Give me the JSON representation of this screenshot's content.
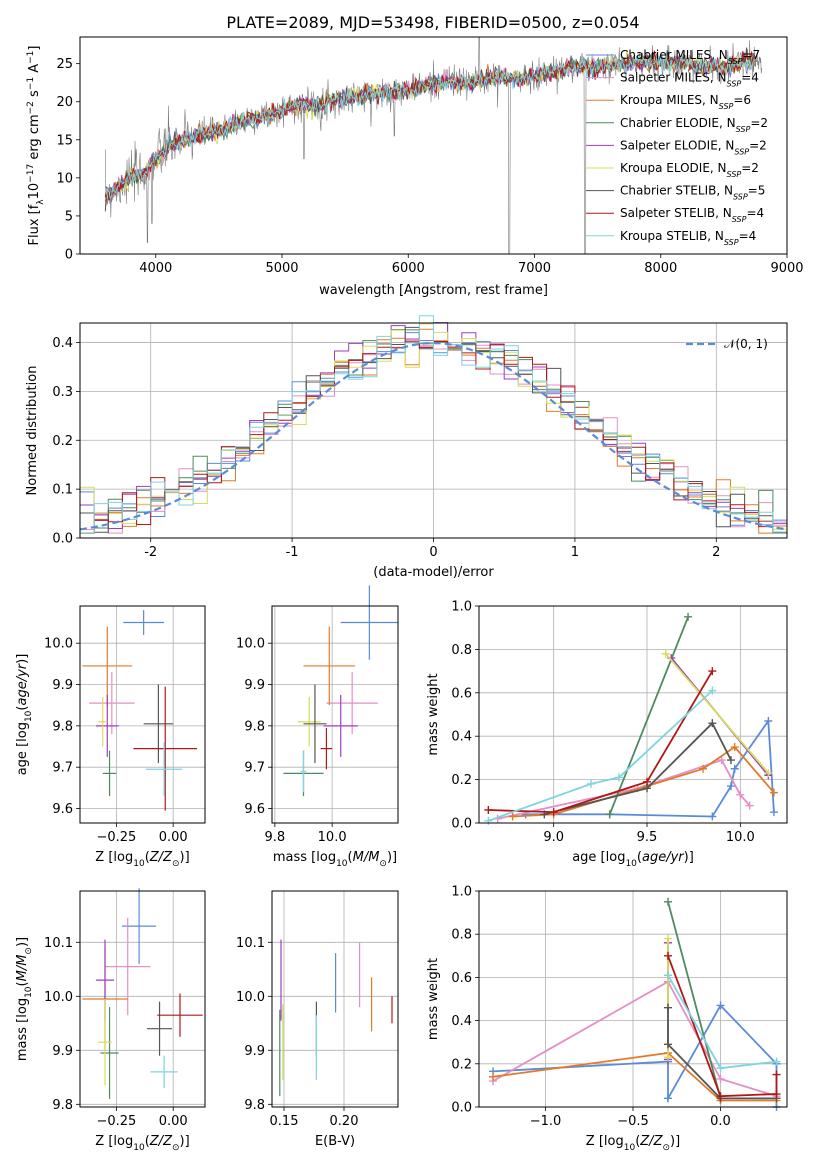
{
  "figure_title": "PLATE=2089, MJD=53498, FIBERID=0500, z=0.054",
  "series_styles": [
    {
      "name": "Chabrier MILES",
      "color": "#5b8bd8"
    },
    {
      "name": "Salpeter MILES",
      "color": "#e48fc5"
    },
    {
      "name": "Kroupa MILES",
      "color": "#e07b2a"
    },
    {
      "name": "Chabrier ELODIE",
      "color": "#4f8a5f"
    },
    {
      "name": "Salpeter ELODIE",
      "color": "#9b3fbf"
    },
    {
      "name": "Kroupa ELODIE",
      "color": "#d8dd5a"
    },
    {
      "name": "Chabrier STELIB",
      "color": "#555555"
    },
    {
      "name": "Salpeter STELIB",
      "color": "#b01818"
    },
    {
      "name": "Kroupa STELIB",
      "color": "#7ed4df"
    }
  ],
  "chart_data": [
    {
      "id": "spectrum",
      "type": "line",
      "xlabel": "wavelength [Angstrom, rest frame]",
      "ylabel": "Flux [f_λ10^-17 erg cm^-2 s^-1 A^-1]",
      "xlim": [
        3400,
        9000
      ],
      "ylim": [
        0,
        28.5
      ],
      "xticks": [
        4000,
        5000,
        6000,
        7000,
        8000,
        9000
      ],
      "yticks": [
        0,
        5,
        10,
        15,
        20,
        25
      ],
      "grid": false,
      "legend_position": "right",
      "legend": [
        {
          "label": "Chabrier MILES, N",
          "sub": "SSP",
          "suffix": "=7",
          "color": "#5b8bd8"
        },
        {
          "label": "Salpeter MILES, N",
          "sub": "SSP",
          "suffix": "=4",
          "color": "#e48fc5"
        },
        {
          "label": "Kroupa MILES, N",
          "sub": "SSP",
          "suffix": "=6",
          "color": "#e07b2a"
        },
        {
          "label": "Chabrier ELODIE, N",
          "sub": "SSP",
          "suffix": "=2",
          "color": "#4f8a5f"
        },
        {
          "label": "Salpeter ELODIE, N",
          "sub": "SSP",
          "suffix": "=2",
          "color": "#9b3fbf"
        },
        {
          "label": "Kroupa ELODIE, N",
          "sub": "SSP",
          "suffix": "=2",
          "color": "#d8dd5a"
        },
        {
          "label": "Chabrier STELIB, N",
          "sub": "SSP",
          "suffix": "=5",
          "color": "#555555"
        },
        {
          "label": "Salpeter STELIB, N",
          "sub": "SSP",
          "suffix": "=4",
          "color": "#b01818"
        },
        {
          "label": "Kroupa STELIB, N",
          "sub": "SSP",
          "suffix": "=4",
          "color": "#7ed4df"
        }
      ],
      "continuum": {
        "x": [
          3600,
          3700,
          3800,
          3900,
          4000,
          4100,
          4300,
          4500,
          4700,
          4900,
          5100,
          5300,
          5500,
          5700,
          5900,
          6100,
          6300,
          6500,
          6700,
          6900,
          7100,
          7300,
          7500,
          7700,
          7900,
          8100,
          8300,
          8500,
          8700
        ],
        "y": [
          7.5,
          8.8,
          10.0,
          10.5,
          12.5,
          14.2,
          15.5,
          16.2,
          17.6,
          18.3,
          19.5,
          19.6,
          20.5,
          21.0,
          21.3,
          21.9,
          22.7,
          22.5,
          23.3,
          23.0,
          23.8,
          24.6,
          24.5,
          25.0,
          25.3,
          25.1,
          24.8,
          24.5,
          25.5
        ]
      },
      "features": [
        {
          "x": 3934,
          "y": 1.5
        },
        {
          "x": 3970,
          "y": 4.0
        },
        {
          "x": 5175,
          "y": 12.5
        },
        {
          "x": 5890,
          "y": 15.5
        },
        {
          "x": 6563,
          "y": 28.5
        },
        {
          "x": 6800,
          "y": 0
        },
        {
          "x": 7400,
          "y": 0
        }
      ]
    },
    {
      "id": "residuals",
      "type": "histogram",
      "xlabel": "(data-model)/error",
      "ylabel": "Normed distribution",
      "xlim": [
        -2.5,
        2.5
      ],
      "ylim": [
        0,
        0.44
      ],
      "xticks": [
        -2,
        -1,
        0,
        1,
        2
      ],
      "yticks": [
        0.0,
        0.1,
        0.2,
        0.3,
        0.4
      ],
      "grid": true,
      "legend": [
        {
          "label": "𝒩(0, 1)",
          "color": "#5b8bd8",
          "dashed": true
        }
      ],
      "legend_position": "top-right",
      "bin_width": 0.1,
      "reference_curve": "gaussian N(0,1)"
    },
    {
      "id": "age_vs_Z",
      "type": "scatter",
      "xlabel": "Z [log10(Z/Z⊙)]",
      "ylabel": "age [log10(age/yr)]",
      "xlim": [
        -0.41,
        0.14
      ],
      "ylim": [
        9.565,
        10.09
      ],
      "xticks": [
        -0.25,
        0.0
      ],
      "xtick_labels": [
        "−0.25",
        "0.00"
      ],
      "yticks": [
        9.6,
        9.7,
        9.8,
        9.9,
        10.0
      ],
      "grid": true,
      "points": [
        {
          "series": "Chabrier MILES",
          "x": -0.13,
          "y": 10.05,
          "xerr": 0.09,
          "yerr": 0.03
        },
        {
          "series": "Salpeter MILES",
          "x": -0.27,
          "y": 9.855,
          "xerr": 0.1,
          "yerr": 0.075
        },
        {
          "series": "Kroupa MILES",
          "x": -0.29,
          "y": 9.945,
          "xerr": 0.11,
          "yerr": 0.095
        },
        {
          "series": "Chabrier ELODIE",
          "x": -0.28,
          "y": 9.685,
          "xerr": 0.03,
          "yerr": 0.055
        },
        {
          "series": "Salpeter ELODIE",
          "x": -0.29,
          "y": 9.8,
          "xerr": 0.05,
          "yerr": 0.075
        },
        {
          "series": "Kroupa ELODIE",
          "x": -0.31,
          "y": 9.81,
          "xerr": 0.02,
          "yerr": 0.06
        },
        {
          "series": "Chabrier STELIB",
          "x": -0.065,
          "y": 9.805,
          "xerr": 0.065,
          "yerr": 0.095
        },
        {
          "series": "Salpeter STELIB",
          "x": -0.035,
          "y": 9.745,
          "xerr": 0.14,
          "yerr": 0.15
        },
        {
          "series": "Kroupa STELIB",
          "x": -0.04,
          "y": 9.695,
          "xerr": 0.08,
          "yerr": 0.065
        }
      ]
    },
    {
      "id": "age_vs_mass",
      "type": "scatter",
      "xlabel": "mass [log10(M/M⊙)]",
      "ylabel": "",
      "xlim": [
        9.79,
        10.23
      ],
      "ylim": [
        9.565,
        10.09
      ],
      "xticks": [
        9.8,
        10.0
      ],
      "xtick_labels": [
        "9.8",
        "10.0"
      ],
      "yticks": [
        9.6,
        9.7,
        9.8,
        9.9,
        10.0
      ],
      "grid": true,
      "points": [
        {
          "series": "Chabrier MILES",
          "x": 10.13,
          "y": 10.05,
          "xerr": 0.1,
          "yerr": 0.09
        },
        {
          "series": "Salpeter MILES",
          "x": 10.07,
          "y": 9.855,
          "xerr": 0.09,
          "yerr": 0.075
        },
        {
          "series": "Kroupa MILES",
          "x": 9.99,
          "y": 9.945,
          "xerr": 0.09,
          "yerr": 0.095
        },
        {
          "series": "Chabrier ELODIE",
          "x": 9.9,
          "y": 9.685,
          "xerr": 0.07,
          "yerr": 0.055
        },
        {
          "series": "Salpeter ELODIE",
          "x": 10.03,
          "y": 9.8,
          "xerr": 0.06,
          "yerr": 0.075
        },
        {
          "series": "Kroupa ELODIE",
          "x": 9.92,
          "y": 9.81,
          "xerr": 0.04,
          "yerr": 0.06
        },
        {
          "series": "Chabrier STELIB",
          "x": 9.94,
          "y": 9.805,
          "xerr": 0.04,
          "yerr": 0.095
        },
        {
          "series": "Salpeter STELIB",
          "x": 9.98,
          "y": 9.745,
          "xerr": 0.02,
          "yerr": 0.05
        },
        {
          "series": "Kroupa STELIB",
          "x": 9.9,
          "y": 9.69,
          "xerr": 0.01,
          "yerr": 0.05
        }
      ]
    },
    {
      "id": "weight_vs_age",
      "type": "line",
      "xlabel": "age  [log10(age/yr)]",
      "ylabel": "mass weight",
      "xlim": [
        8.6,
        10.25
      ],
      "ylim": [
        0,
        1
      ],
      "xticks": [
        9.0,
        9.5,
        10.0
      ],
      "xtick_labels": [
        "9.0",
        "9.5",
        "10.0"
      ],
      "yticks": [
        0.0,
        0.2,
        0.4,
        0.6,
        0.8,
        1.0
      ],
      "grid": true,
      "series": [
        {
          "name": "Chabrier MILES",
          "x": [
            8.85,
            9.3,
            9.85,
            9.95,
            9.97,
            10.15,
            10.18
          ],
          "y": [
            0.04,
            0.04,
            0.03,
            0.17,
            0.25,
            0.47,
            0.05
          ]
        },
        {
          "name": "Salpeter MILES",
          "x": [
            8.7,
            9.45,
            9.9,
            10.0,
            10.05
          ],
          "y": [
            0.02,
            0.16,
            0.29,
            0.13,
            0.08
          ]
        },
        {
          "name": "Kroupa MILES",
          "x": [
            8.78,
            9.0,
            9.5,
            9.8,
            9.97,
            10.18
          ],
          "y": [
            0.03,
            0.04,
            0.17,
            0.25,
            0.35,
            0.14
          ]
        },
        {
          "name": "Chabrier ELODIE",
          "x": [
            9.3,
            9.72
          ],
          "y": [
            0.04,
            0.95
          ]
        },
        {
          "name": "Salpeter ELODIE",
          "x": [
            9.63,
            10.15
          ],
          "y": [
            0.76,
            0.22
          ]
        },
        {
          "name": "Kroupa ELODIE",
          "x": [
            9.6,
            10.15
          ],
          "y": [
            0.78,
            0.23
          ]
        },
        {
          "name": "Chabrier STELIB",
          "x": [
            8.95,
            9.5,
            9.85,
            9.95
          ],
          "y": [
            0.04,
            0.16,
            0.46,
            0.29
          ]
        },
        {
          "name": "Salpeter STELIB",
          "x": [
            8.65,
            9.0,
            9.5,
            9.85
          ],
          "y": [
            0.06,
            0.05,
            0.19,
            0.7
          ]
        },
        {
          "name": "Kroupa STELIB",
          "x": [
            8.65,
            9.2,
            9.35,
            9.85
          ],
          "y": [
            0.01,
            0.18,
            0.21,
            0.61
          ]
        }
      ]
    },
    {
      "id": "mass_vs_Z",
      "type": "scatter",
      "xlabel": "Z [log10(Z/Z⊙)]",
      "ylabel": "mass [log10(M/M⊙)]",
      "xlim": [
        -0.41,
        0.14
      ],
      "ylim": [
        9.795,
        10.195
      ],
      "xticks": [
        -0.25,
        0.0
      ],
      "xtick_labels": [
        "−0.25",
        "0.00"
      ],
      "yticks": [
        9.8,
        9.9,
        10.0,
        10.1
      ],
      "ytick_labels": [
        "9.8",
        "9.9",
        "10.0",
        "10.1"
      ],
      "grid": true,
      "points": [
        {
          "series": "Chabrier MILES",
          "x": -0.15,
          "y": 10.13,
          "xerr": 0.075,
          "yerr": 0.07
        },
        {
          "series": "Salpeter MILES",
          "x": -0.2,
          "y": 10.055,
          "xerr": 0.1,
          "yerr": 0.09
        },
        {
          "series": "Kroupa MILES",
          "x": -0.3,
          "y": 9.995,
          "xerr": 0.1,
          "yerr": 0.095
        },
        {
          "series": "Chabrier ELODIE",
          "x": -0.28,
          "y": 9.895,
          "xerr": 0.04,
          "yerr": 0.085
        },
        {
          "series": "Salpeter ELODIE",
          "x": -0.3,
          "y": 10.03,
          "xerr": 0.04,
          "yerr": 0.075
        },
        {
          "series": "Kroupa ELODIE",
          "x": -0.3,
          "y": 9.915,
          "xerr": 0.03,
          "yerr": 0.08
        },
        {
          "series": "Chabrier STELIB",
          "x": -0.06,
          "y": 9.94,
          "xerr": 0.055,
          "yerr": 0.05
        },
        {
          "series": "Salpeter STELIB",
          "x": 0.03,
          "y": 9.965,
          "xerr": 0.1,
          "yerr": 0.04
        },
        {
          "series": "Kroupa STELIB",
          "x": -0.04,
          "y": 9.86,
          "xerr": 0.06,
          "yerr": 0.03
        }
      ]
    },
    {
      "id": "mass_vs_EBV",
      "type": "scatter",
      "xlabel": "E(B-V)",
      "ylabel": "",
      "xlim": [
        0.14,
        0.245
      ],
      "ylim": [
        9.795,
        10.195
      ],
      "xticks": [
        0.15,
        0.2
      ],
      "xtick_labels": [
        "0.15",
        "0.20"
      ],
      "yticks": [
        9.8,
        9.9,
        10.0,
        10.1
      ],
      "ytick_labels": [
        "9.8",
        "9.9",
        "10.0",
        "10.1"
      ],
      "grid": true,
      "points": [
        {
          "series": "Chabrier MILES",
          "x": 0.193,
          "y": 10.025,
          "xerr": 0,
          "yerr": 0.055
        },
        {
          "series": "Salpeter MILES",
          "x": 0.213,
          "y": 10.04,
          "xerr": 0,
          "yerr": 0.06
        },
        {
          "series": "Kroupa MILES",
          "x": 0.223,
          "y": 9.985,
          "xerr": 0,
          "yerr": 0.05
        },
        {
          "series": "Chabrier ELODIE",
          "x": 0.1465,
          "y": 9.895,
          "xerr": 0,
          "yerr": 0.08
        },
        {
          "series": "Salpeter ELODIE",
          "x": 0.1475,
          "y": 10.03,
          "xerr": 0,
          "yerr": 0.075
        },
        {
          "series": "Kroupa ELODIE",
          "x": 0.149,
          "y": 9.915,
          "xerr": 0,
          "yerr": 0.07
        },
        {
          "series": "Chabrier STELIB",
          "x": 0.177,
          "y": 9.94,
          "xerr": 0,
          "yerr": 0.05
        },
        {
          "series": "Salpeter STELIB",
          "x": 0.24,
          "y": 9.975,
          "xerr": 0,
          "yerr": 0.025
        },
        {
          "series": "Kroupa STELIB",
          "x": 0.177,
          "y": 9.905,
          "xerr": 0,
          "yerr": 0.06
        }
      ]
    },
    {
      "id": "weight_vs_Z",
      "type": "line",
      "xlabel": "Z [log10(Z/Z⊙)]",
      "ylabel": "mass weight",
      "xlim": [
        -1.38,
        0.38
      ],
      "ylim": [
        0,
        1
      ],
      "xticks": [
        -1.0,
        -0.5,
        0.0
      ],
      "xtick_labels": [
        "−1.0",
        "−0.5",
        "0.0"
      ],
      "yticks": [
        0.0,
        0.2,
        0.4,
        0.6,
        0.8,
        1.0
      ],
      "grid": true,
      "series": [
        {
          "name": "Chabrier MILES",
          "x": [
            -1.3,
            -0.3,
            -0.3,
            0.0,
            0.32,
            0.32
          ],
          "y": [
            0.165,
            0.21,
            0.04,
            0.47,
            0.2,
            0.0
          ]
        },
        {
          "name": "Salpeter MILES",
          "x": [
            -1.3,
            -0.3,
            0.0,
            0.32
          ],
          "y": [
            0.12,
            0.58,
            0.13,
            0.05
          ]
        },
        {
          "name": "Kroupa MILES",
          "x": [
            -1.3,
            -0.3,
            0.0,
            0.32
          ],
          "y": [
            0.14,
            0.25,
            0.03,
            0.03
          ]
        },
        {
          "name": "Chabrier ELODIE",
          "x": [
            -0.3,
            0.0
          ],
          "y": [
            0.95,
            0.04
          ]
        },
        {
          "name": "Salpeter ELODIE",
          "x": [
            -0.3,
            -0.3
          ],
          "y": [
            0.76,
            0.22
          ]
        },
        {
          "name": "Kroupa ELODIE",
          "x": [
            -0.3,
            -0.3
          ],
          "y": [
            0.78,
            0.23
          ]
        },
        {
          "name": "Chabrier STELIB",
          "x": [
            -0.3,
            -0.3,
            0.0,
            0.32
          ],
          "y": [
            0.46,
            0.29,
            0.04,
            0.04
          ]
        },
        {
          "name": "Salpeter STELIB",
          "x": [
            -0.3,
            0.0,
            0.32,
            0.32
          ],
          "y": [
            0.7,
            0.05,
            0.06,
            0.15
          ]
        },
        {
          "name": "Kroupa STELIB",
          "x": [
            -0.3,
            0.0,
            0.32
          ],
          "y": [
            0.61,
            0.18,
            0.21
          ]
        }
      ]
    }
  ]
}
